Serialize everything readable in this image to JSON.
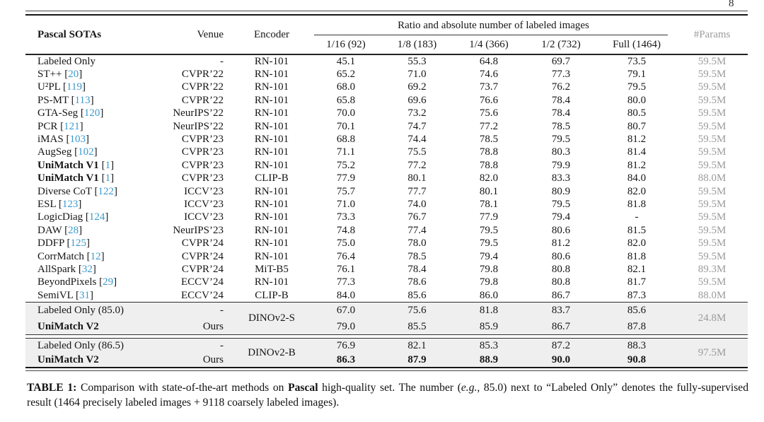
{
  "page_number": "8",
  "colors": {
    "citation": "#3a99ce",
    "muted": "#9b9b9b",
    "band": "#efefef"
  },
  "table": {
    "header": {
      "method": "Pascal SOTAs",
      "venue": "Venue",
      "encoder": "Encoder",
      "group": "Ratio and absolute number of labeled images",
      "splits": [
        "1/16 (92)",
        "1/8 (183)",
        "1/4 (366)",
        "1/2 (732)",
        "Full (1464)"
      ],
      "params": "#Params"
    },
    "rows": [
      {
        "method": "Labeled Only",
        "cite": "",
        "venue": "-",
        "encoder": "RN-101",
        "values": [
          "45.1",
          "55.3",
          "64.8",
          "69.7",
          "73.5"
        ],
        "params": "59.5M"
      },
      {
        "method": "ST++",
        "cite": "20",
        "venue": "CVPR’22",
        "encoder": "RN-101",
        "values": [
          "65.2",
          "71.0",
          "74.6",
          "77.3",
          "79.1"
        ],
        "params": "59.5M"
      },
      {
        "method": "U²PL",
        "cite": "119",
        "venue": "CVPR’22",
        "encoder": "RN-101",
        "values": [
          "68.0",
          "69.2",
          "73.7",
          "76.2",
          "79.5"
        ],
        "params": "59.5M"
      },
      {
        "method": "PS-MT",
        "cite": "113",
        "venue": "CVPR’22",
        "encoder": "RN-101",
        "values": [
          "65.8",
          "69.6",
          "76.6",
          "78.4",
          "80.0"
        ],
        "params": "59.5M"
      },
      {
        "method": "GTA-Seg",
        "cite": "120",
        "venue": "NeurIPS’22",
        "encoder": "RN-101",
        "values": [
          "70.0",
          "73.2",
          "75.6",
          "78.4",
          "80.5"
        ],
        "params": "59.5M"
      },
      {
        "method": "PCR",
        "cite": "121",
        "venue": "NeurIPS’22",
        "encoder": "RN-101",
        "values": [
          "70.1",
          "74.7",
          "77.2",
          "78.5",
          "80.7"
        ],
        "params": "59.5M"
      },
      {
        "method": "iMAS",
        "cite": "103",
        "venue": "CVPR’23",
        "encoder": "RN-101",
        "values": [
          "68.8",
          "74.4",
          "78.5",
          "79.5",
          "81.2"
        ],
        "params": "59.5M"
      },
      {
        "method": "AugSeg",
        "cite": "102",
        "venue": "CVPR’23",
        "encoder": "RN-101",
        "values": [
          "71.1",
          "75.5",
          "78.8",
          "80.3",
          "81.4"
        ],
        "params": "59.5M"
      },
      {
        "method": "UniMatch V1",
        "bold": true,
        "cite": "1",
        "venue": "CVPR’23",
        "encoder": "RN-101",
        "values": [
          "75.2",
          "77.2",
          "78.8",
          "79.9",
          "81.2"
        ],
        "params": "59.5M"
      },
      {
        "method": "UniMatch V1",
        "bold": true,
        "cite": "1",
        "venue": "CVPR’23",
        "encoder": "CLIP-B",
        "values": [
          "77.9",
          "80.1",
          "82.0",
          "83.3",
          "84.0"
        ],
        "params": "88.0M"
      },
      {
        "method": "Diverse CoT",
        "cite": "122",
        "venue": "ICCV’23",
        "encoder": "RN-101",
        "values": [
          "75.7",
          "77.7",
          "80.1",
          "80.9",
          "82.0"
        ],
        "params": "59.5M"
      },
      {
        "method": "ESL",
        "cite": "123",
        "venue": "ICCV’23",
        "encoder": "RN-101",
        "values": [
          "71.0",
          "74.0",
          "78.1",
          "79.5",
          "81.8"
        ],
        "params": "59.5M"
      },
      {
        "method": "LogicDiag",
        "cite": "124",
        "venue": "ICCV’23",
        "encoder": "RN-101",
        "values": [
          "73.3",
          "76.7",
          "77.9",
          "79.4",
          "-"
        ],
        "params": "59.5M"
      },
      {
        "method": "DAW",
        "cite": "28",
        "venue": "NeurIPS’23",
        "encoder": "RN-101",
        "values": [
          "74.8",
          "77.4",
          "79.5",
          "80.6",
          "81.5"
        ],
        "params": "59.5M"
      },
      {
        "method": "DDFP",
        "cite": "125",
        "venue": "CVPR’24",
        "encoder": "RN-101",
        "values": [
          "75.0",
          "78.0",
          "79.5",
          "81.2",
          "82.0"
        ],
        "params": "59.5M"
      },
      {
        "method": "CorrMatch",
        "cite": "12",
        "venue": "CVPR’24",
        "encoder": "RN-101",
        "values": [
          "76.4",
          "78.5",
          "79.4",
          "80.6",
          "81.8"
        ],
        "params": "59.5M"
      },
      {
        "method": "AllSpark",
        "cite": "32",
        "venue": "CVPR’24",
        "encoder": "MiT-B5",
        "values": [
          "76.1",
          "78.4",
          "79.8",
          "80.8",
          "82.1"
        ],
        "params": "89.3M"
      },
      {
        "method": "BeyondPixels",
        "cite": "29",
        "venue": "ECCV’24",
        "encoder": "RN-101",
        "values": [
          "77.3",
          "78.6",
          "79.8",
          "80.8",
          "81.7"
        ],
        "params": "59.5M"
      },
      {
        "method": "SemiVL",
        "cite": "31",
        "venue": "ECCV’24",
        "encoder": "CLIP-B",
        "values": [
          "84.0",
          "85.6",
          "86.0",
          "86.7",
          "87.3"
        ],
        "params": "88.0M"
      }
    ],
    "groups": [
      {
        "encoder": "DINOv2-S",
        "params": "24.8M",
        "rows": [
          {
            "method": "Labeled Only (85.0)",
            "venue": "-",
            "values": [
              "67.0",
              "75.6",
              "81.8",
              "83.7",
              "85.6"
            ]
          },
          {
            "method": "UniMatch V2",
            "bold": true,
            "venue": "Ours",
            "values": [
              "79.0",
              "85.5",
              "85.9",
              "86.7",
              "87.8"
            ]
          }
        ]
      },
      {
        "encoder": "DINOv2-B",
        "params": "97.5M",
        "rows": [
          {
            "method": "Labeled Only (86.5)",
            "venue": "-",
            "values": [
              "76.9",
              "82.1",
              "85.3",
              "87.2",
              "88.3"
            ]
          },
          {
            "method": "UniMatch V2",
            "bold": true,
            "bold_values": true,
            "venue": "Ours",
            "values": [
              "86.3",
              "87.9",
              "88.9",
              "90.0",
              "90.8"
            ]
          }
        ]
      }
    ]
  },
  "caption": {
    "segments": [
      {
        "text": "TABLE 1:",
        "bold": true
      },
      {
        "text": " Comparison with state-of-the-art methods on "
      },
      {
        "text": "Pascal",
        "bold": true
      },
      {
        "text": " high-quality set. The number ("
      },
      {
        "text": "e.g.",
        "italic": true
      },
      {
        "text": ", 85.0) next to “Labeled Only” denotes the fully-supervised result (1464 precisely labeled images + 9118 coarsely labeled images)."
      }
    ]
  }
}
